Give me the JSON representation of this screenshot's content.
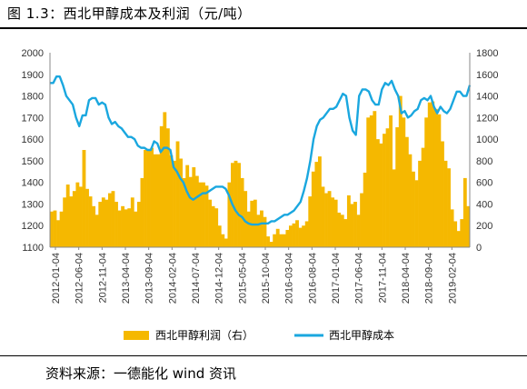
{
  "figure": {
    "title": "图 1.3：西北甲醇成本及利润（元/吨）",
    "source": "资料来源：一德能化  wind 资讯"
  },
  "chart_data": {
    "type": "bar+line",
    "x_ticks": [
      "2012-01-04",
      "2012-06-04",
      "2012-11-04",
      "2013-04-04",
      "2013-09-04",
      "2014-02-04",
      "2014-07-04",
      "2014-12-04",
      "2015-05-04",
      "2015-10-04",
      "2016-03-04",
      "2016-08-04",
      "2017-01-04",
      "2017-06-04",
      "2017-11-04",
      "2018-04-04",
      "2018-09-04",
      "2019-02-04"
    ],
    "y_left": {
      "min": 1100,
      "max": 2000,
      "ticks": [
        1100,
        1200,
        1300,
        1400,
        1500,
        1600,
        1700,
        1800,
        1900,
        2000
      ]
    },
    "y_right": {
      "min": 0,
      "max": 1800,
      "ticks": [
        0,
        200,
        400,
        600,
        800,
        1000,
        1200,
        1400,
        1600,
        1800
      ]
    },
    "grid": false,
    "legend_position": "bottom",
    "series": [
      {
        "name": "西北甲醇利润（右）",
        "kind": "bar",
        "axis": "right",
        "color": "#F5B800",
        "values": [
          330,
          340,
          250,
          330,
          460,
          580,
          470,
          520,
          600,
          560,
          900,
          540,
          470,
          380,
          300,
          420,
          460,
          440,
          500,
          520,
          420,
          340,
          380,
          350,
          360,
          460,
          330,
          420,
          640,
          900,
          900,
          920,
          860,
          860,
          1120,
          1250,
          1100,
          850,
          800,
          980,
          820,
          640,
          760,
          650,
          740,
          660,
          600,
          600,
          570,
          440,
          380,
          360,
          200,
          120,
          80,
          600,
          780,
          800,
          780,
          640,
          520,
          330,
          430,
          440,
          300,
          340,
          280,
          100,
          50,
          120,
          170,
          120,
          120,
          160,
          200,
          220,
          250,
          180,
          200,
          240,
          470,
          700,
          790,
          840,
          560,
          500,
          520,
          460,
          440,
          320,
          300,
          260,
          480,
          400,
          420,
          300,
          500,
          690,
          1200,
          1220,
          1260,
          1000,
          960,
          1050,
          1100,
          1220,
          720,
          1110,
          1400,
          1200,
          1020,
          860,
          700,
          620,
          800,
          920,
          1200,
          1340,
          1350,
          1280,
          1230,
          980,
          800,
          730,
          350,
          240,
          150,
          260,
          640,
          380
        ]
      },
      {
        "name": "西北甲醇成本",
        "kind": "line",
        "axis": "left",
        "color": "#1AA7DF",
        "values": [
          1860,
          1860,
          1890,
          1890,
          1850,
          1800,
          1780,
          1760,
          1700,
          1660,
          1710,
          1710,
          1780,
          1790,
          1790,
          1760,
          1770,
          1760,
          1700,
          1670,
          1680,
          1660,
          1650,
          1630,
          1610,
          1610,
          1600,
          1570,
          1560,
          1560,
          1550,
          1550,
          1590,
          1580,
          1540,
          1560,
          1560,
          1550,
          1470,
          1450,
          1420,
          1400,
          1360,
          1330,
          1320,
          1330,
          1340,
          1350,
          1350,
          1360,
          1370,
          1380,
          1380,
          1380,
          1370,
          1340,
          1300,
          1270,
          1250,
          1240,
          1220,
          1210,
          1205,
          1205,
          1205,
          1210,
          1210,
          1210,
          1220,
          1220,
          1230,
          1240,
          1250,
          1250,
          1260,
          1270,
          1290,
          1310,
          1360,
          1420,
          1500,
          1600,
          1660,
          1690,
          1700,
          1720,
          1740,
          1740,
          1750,
          1780,
          1810,
          1800,
          1700,
          1640,
          1620,
          1800,
          1830,
          1830,
          1820,
          1780,
          1760,
          1760,
          1830,
          1860,
          1850,
          1870,
          1830,
          1800,
          1720,
          1730,
          1700,
          1710,
          1730,
          1740,
          1780,
          1790,
          1780,
          1800,
          1750,
          1720,
          1750,
          1730,
          1720,
          1740,
          1780,
          1820,
          1820,
          1800,
          1800,
          1850
        ]
      }
    ]
  }
}
